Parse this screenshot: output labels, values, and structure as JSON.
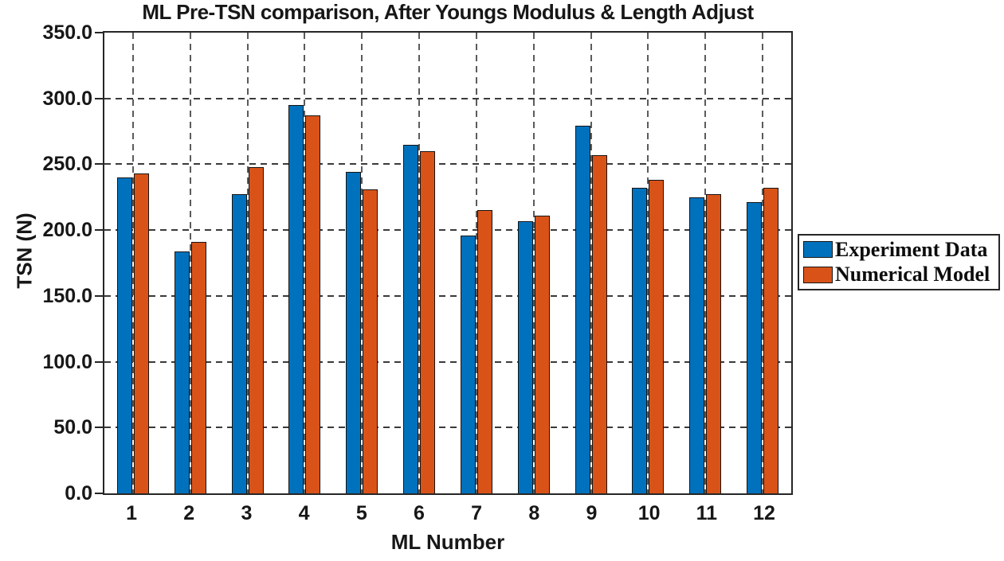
{
  "chart_data": {
    "type": "bar",
    "title": "ML Pre-TSN comparison, After Youngs Modulus & Length Adjust",
    "xlabel": "ML Number",
    "ylabel": "TSN (N)",
    "categories": [
      "1",
      "2",
      "3",
      "4",
      "5",
      "6",
      "7",
      "8",
      "9",
      "10",
      "11",
      "12"
    ],
    "series": [
      {
        "name": "Experiment Data",
        "color": "#0072BD",
        "values": [
          240,
          184,
          227,
          295,
          244,
          265,
          196,
          207,
          279,
          232,
          225,
          221
        ]
      },
      {
        "name": "Numerical Model",
        "color": "#D95319",
        "values": [
          243,
          191,
          248,
          287,
          231,
          260,
          215,
          211,
          257,
          238,
          227,
          232
        ]
      }
    ],
    "ylim": [
      0,
      350
    ],
    "ytick_step": 50,
    "ytick_labels": [
      "0.0",
      "50.0",
      "100.0",
      "150.0",
      "200.0",
      "250.0",
      "300.0",
      "350.0"
    ],
    "grid": {
      "horizontal": "dashed",
      "vertical": "dashed",
      "layer": "below-bars"
    },
    "legend": {
      "position": "outside-right",
      "entries": [
        "Experiment Data",
        "Numerical Model"
      ]
    },
    "bar_edge_color": "#141414"
  }
}
